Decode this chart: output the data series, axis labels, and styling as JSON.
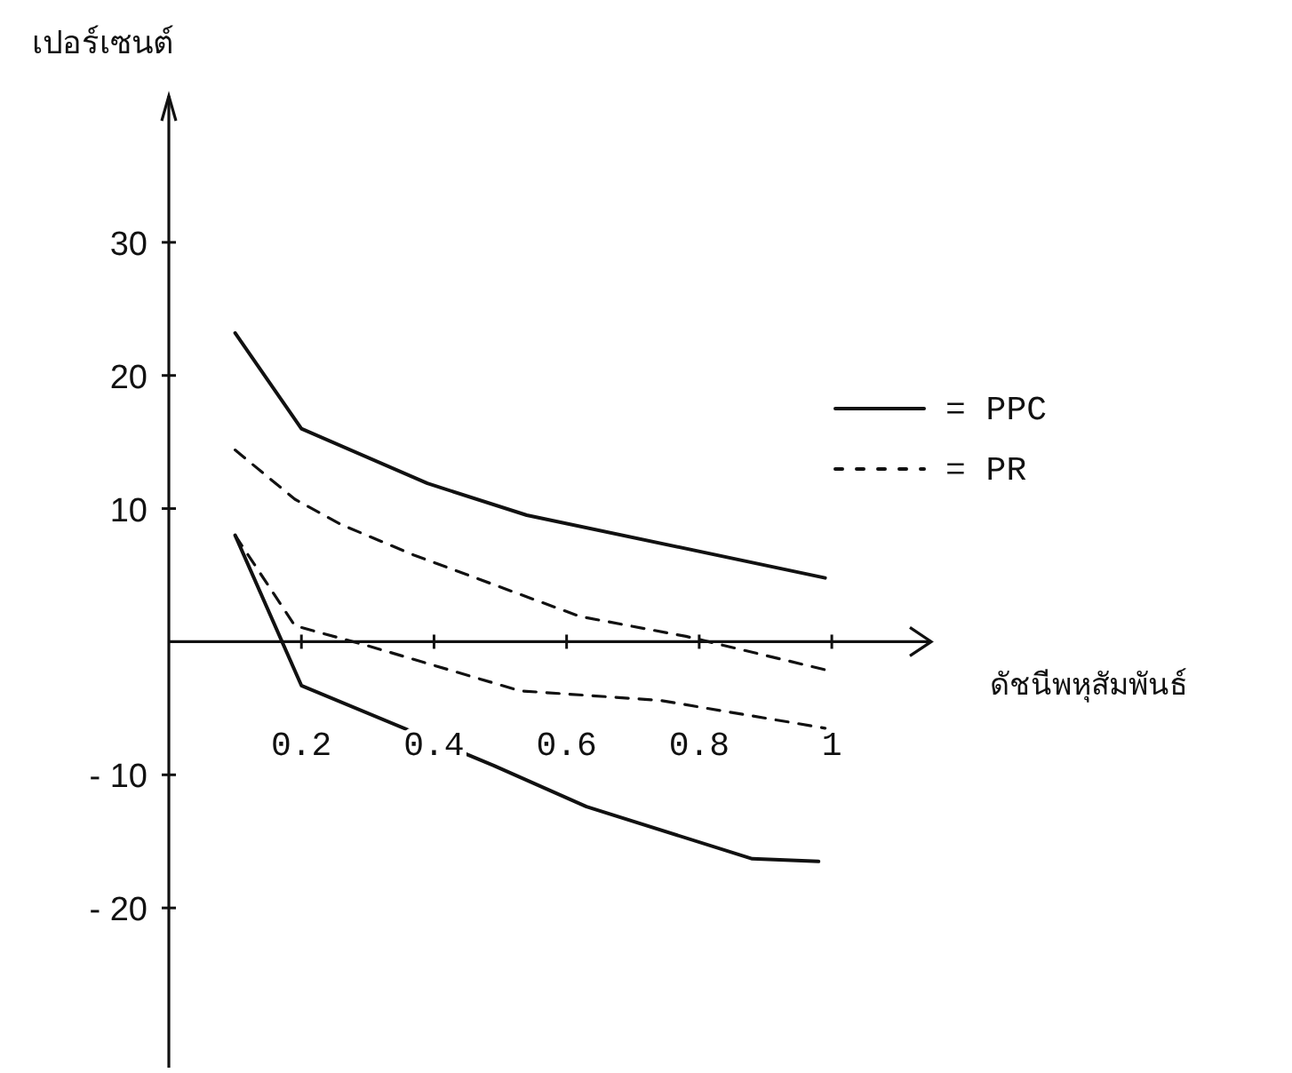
{
  "chart_data": {
    "type": "line",
    "xlabel": "ดัชนีพหุสัมพันธ์",
    "ylabel": "เปอร์เซนต์",
    "xlim": [
      0,
      1.15
    ],
    "ylim": [
      -32,
      41
    ],
    "xticks": [
      0.2,
      0.4,
      0.6,
      0.8,
      1
    ],
    "yticks": [
      30,
      20,
      10,
      {
        "value": -10,
        "label": "- 10"
      },
      {
        "value": -20,
        "label": "- 20"
      }
    ],
    "grid": false,
    "legend": "right",
    "marker": "none",
    "series": [
      {
        "name": "= PPC",
        "color": "#111111",
        "line_style": "solid",
        "x": [
          0.1,
          0.2,
          0.39,
          0.54,
          0.99
        ],
        "values": [
          23.2,
          16,
          11.9,
          9.5,
          4.8
        ]
      },
      {
        "name": "= PR",
        "color": "#111111",
        "line_style": "dashed",
        "x": [
          0.1,
          0.19,
          0.26,
          0.37,
          0.62,
          0.78,
          0.99
        ],
        "values": [
          14.4,
          10.7,
          8.8,
          6.5,
          1.9,
          0.4,
          -2.1
        ]
      },
      {
        "color": "#111111",
        "line_style": "dashed",
        "x": [
          0.1,
          0.19,
          0.3,
          0.53,
          0.74,
          0.99
        ],
        "values": [
          8,
          1.2,
          -0.3,
          -3.7,
          -4.4,
          -6.5
        ]
      },
      {
        "color": "#111111",
        "line_style": "solid",
        "x": [
          0.1,
          0.2,
          0.49,
          0.63,
          0.88,
          0.98
        ],
        "values": [
          8,
          -3.3,
          -9.3,
          -12.4,
          -16.3,
          -16.5
        ]
      }
    ]
  }
}
